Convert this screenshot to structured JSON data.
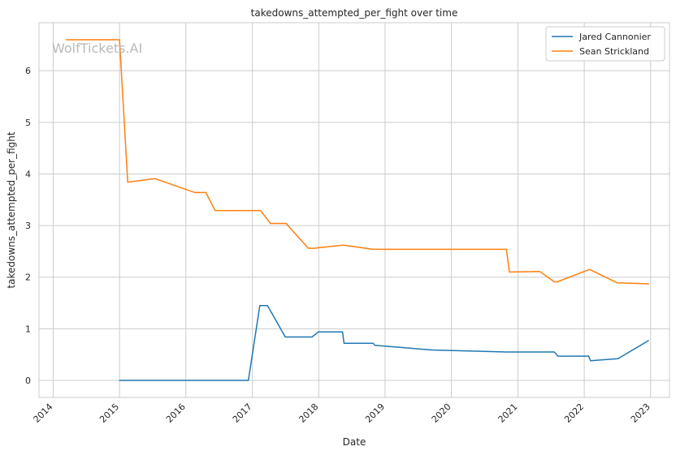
{
  "chart_data": {
    "type": "line",
    "title": "takedowns_attempted_per_fight over time",
    "xlabel": "Date",
    "ylabel": "takedowns_attempted_per_fight",
    "watermark": "WolfTickets.AI",
    "xlim": [
      "2013-10-15",
      "2023-04-15"
    ],
    "ylim": [
      -0.33,
      6.93
    ],
    "x_ticks": [
      "2014",
      "2015",
      "2016",
      "2017",
      "2018",
      "2019",
      "2020",
      "2021",
      "2022",
      "2023"
    ],
    "y_ticks": [
      0,
      1,
      2,
      3,
      4,
      5,
      6
    ],
    "grid": true,
    "legend_position": "top-right",
    "series": [
      {
        "name": "Jared Cannonier",
        "color": "#1f77b4",
        "points": [
          [
            "2015-01-01",
            0.0
          ],
          [
            "2016-12-10",
            0.0
          ],
          [
            "2017-02-11",
            1.45
          ],
          [
            "2017-03-25",
            1.45
          ],
          [
            "2017-07-01",
            0.84
          ],
          [
            "2017-11-25",
            0.84
          ],
          [
            "2017-12-30",
            0.94
          ],
          [
            "2018-05-12",
            0.94
          ],
          [
            "2018-05-20",
            0.72
          ],
          [
            "2018-10-27",
            0.72
          ],
          [
            "2018-11-05",
            0.68
          ],
          [
            "2019-09-15",
            0.59
          ],
          [
            "2020-10-30",
            0.55
          ],
          [
            "2021-07-20",
            0.55
          ],
          [
            "2021-08-10",
            0.47
          ],
          [
            "2022-01-25",
            0.47
          ],
          [
            "2022-02-05",
            0.38
          ],
          [
            "2022-07-05",
            0.42
          ],
          [
            "2022-12-20",
            0.77
          ]
        ]
      },
      {
        "name": "Sean Strickland",
        "color": "#ff7f0e",
        "points": [
          [
            "2014-03-15",
            6.6
          ],
          [
            "2015-01-01",
            6.6
          ],
          [
            "2015-02-15",
            3.84
          ],
          [
            "2015-07-15",
            3.91
          ],
          [
            "2016-02-20",
            3.64
          ],
          [
            "2016-04-20",
            3.64
          ],
          [
            "2016-06-10",
            3.29
          ],
          [
            "2017-02-15",
            3.29
          ],
          [
            "2017-04-10",
            3.04
          ],
          [
            "2017-07-05",
            3.04
          ],
          [
            "2017-11-05",
            2.56
          ],
          [
            "2017-12-05",
            2.56
          ],
          [
            "2018-05-15",
            2.62
          ],
          [
            "2018-10-27",
            2.54
          ],
          [
            "2020-10-30",
            2.54
          ],
          [
            "2020-11-15",
            2.1
          ],
          [
            "2021-05-01",
            2.11
          ],
          [
            "2021-07-20",
            1.91
          ],
          [
            "2021-08-05",
            1.91
          ],
          [
            "2022-01-30",
            2.15
          ],
          [
            "2022-07-01",
            1.89
          ],
          [
            "2022-12-20",
            1.87
          ]
        ]
      }
    ]
  }
}
